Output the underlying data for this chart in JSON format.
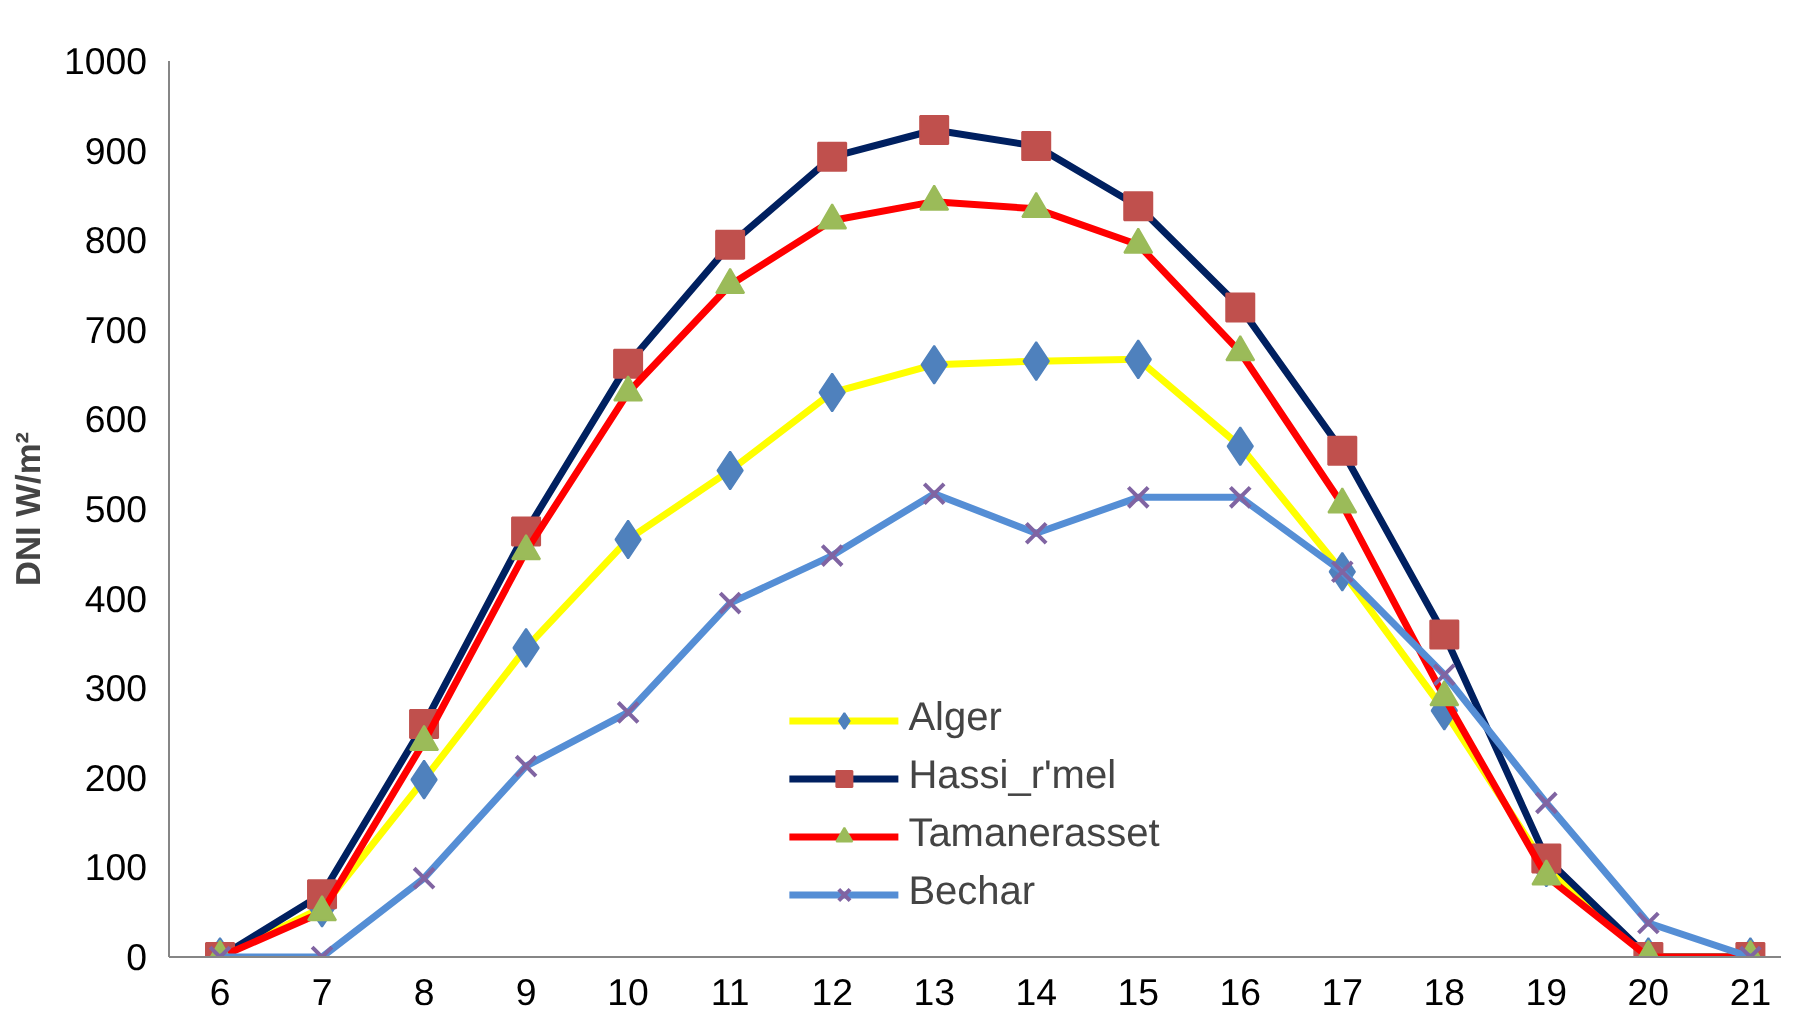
{
  "chart_data": {
    "type": "line",
    "ylabel": "DNI W/m²",
    "x": [
      6,
      7,
      8,
      9,
      10,
      11,
      12,
      13,
      14,
      15,
      16,
      17,
      18,
      19,
      20,
      21
    ],
    "xlim": [
      5.5,
      21.3
    ],
    "xticks": [
      6,
      7,
      8,
      9,
      10,
      11,
      12,
      13,
      14,
      15,
      16,
      17,
      18,
      19,
      20,
      21
    ],
    "ylim": [
      0,
      1000
    ],
    "yticks": [
      0,
      100,
      200,
      300,
      400,
      500,
      600,
      700,
      800,
      900,
      1000
    ],
    "grid": false,
    "legend": "bottom",
    "line_style": "solid",
    "series": [
      {
        "name": "Alger",
        "color": "#ffff00",
        "marker": "diamond",
        "colors": [
          "#4f81bd",
          "#4f81bd",
          "#4f81bd",
          "#4f81bd",
          "#4f81bd",
          "#4f81bd",
          "#4f81bd",
          "#4f81bd",
          "#4f81bd",
          "#4f81bd",
          "#4f81bd",
          "#4f81bd",
          "#4f81bd",
          "#4f81bd",
          "#4f81bd",
          "#4f81bd"
        ],
        "values": [
          0,
          55,
          198,
          345,
          466,
          543,
          630,
          661,
          665,
          667,
          570,
          430,
          275,
          100,
          0,
          0
        ]
      },
      {
        "name": "Hassi_r'mel",
        "color": "#002060",
        "marker": "square",
        "colors": [
          "#c0504d",
          "#c0504d",
          "#c0504d",
          "#c0504d",
          "#c0504d",
          "#c0504d",
          "#c0504d",
          "#c0504d",
          "#c0504d",
          "#c0504d",
          "#c0504d",
          "#c0504d",
          "#c0504d",
          "#c0504d",
          "#c0504d",
          "#c0504d"
        ],
        "values": [
          0,
          70,
          260,
          475,
          662,
          795,
          893,
          923,
          905,
          838,
          725,
          565,
          360,
          110,
          0,
          0
        ]
      },
      {
        "name": "Tamanerasset",
        "color": "#ff0000",
        "marker": "triangle",
        "colors": [
          "#9bbb59",
          "#9bbb59",
          "#9bbb59",
          "#9bbb59",
          "#9bbb59",
          "#9bbb59",
          "#9bbb59",
          "#9bbb59",
          "#9bbb59",
          "#9bbb59",
          "#9bbb59",
          "#9bbb59",
          "#9bbb59",
          "#9bbb59",
          "#9bbb59",
          "#9bbb59"
        ],
        "values": [
          0,
          50,
          240,
          453,
          630,
          750,
          822,
          843,
          835,
          795,
          675,
          505,
          290,
          90,
          0,
          0
        ]
      },
      {
        "name": "Bechar",
        "color": "#558ed5",
        "marker": "cross",
        "colors": [
          "#8064a2",
          "#8064a2",
          "#8064a2",
          "#8064a2",
          "#8064a2",
          "#8064a2",
          "#8064a2",
          "#8064a2",
          "#8064a2",
          "#8064a2",
          "#8064a2",
          "#8064a2",
          "#8064a2",
          "#8064a2",
          "#8064a2",
          "#8064a2"
        ],
        "values": [
          0,
          0,
          88,
          213,
          273,
          395,
          448,
          517,
          473,
          513,
          513,
          430,
          315,
          172,
          38,
          0
        ]
      }
    ]
  }
}
